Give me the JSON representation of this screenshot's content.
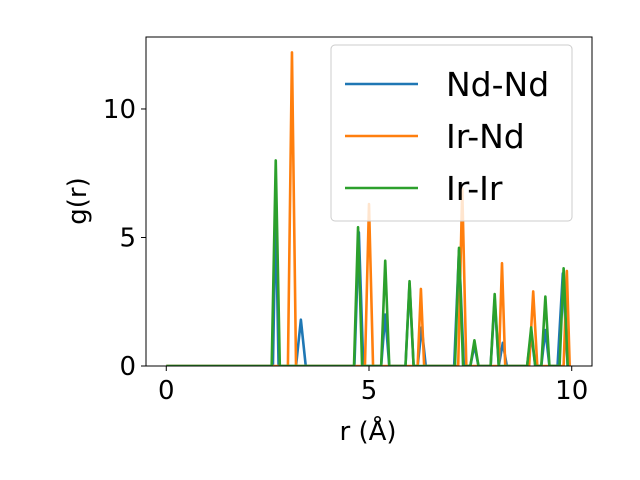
{
  "chart_data": {
    "type": "line",
    "xlabel": "r (Å)",
    "ylabel": "g(r)",
    "xlim": [
      -0.5,
      10.5
    ],
    "ylim": [
      0,
      12.8
    ],
    "x_ticks": [
      0,
      5,
      10
    ],
    "y_ticks": [
      0,
      5,
      10
    ],
    "grid": false,
    "legend_position": "upper right",
    "series": [
      {
        "name": "Nd-Nd",
        "color": "#1f77b4",
        "points": [
          [
            0,
            0
          ],
          [
            2.63,
            0
          ],
          [
            2.7,
            6.0
          ],
          [
            2.77,
            0
          ],
          [
            3.2,
            0
          ],
          [
            3.32,
            1.8
          ],
          [
            3.44,
            0
          ],
          [
            4.64,
            0
          ],
          [
            4.75,
            5.2
          ],
          [
            4.86,
            0
          ],
          [
            5.3,
            0
          ],
          [
            5.4,
            2.0
          ],
          [
            5.5,
            0
          ],
          [
            5.9,
            0
          ],
          [
            6.0,
            3.2
          ],
          [
            6.1,
            0
          ],
          [
            6.2,
            0
          ],
          [
            6.3,
            1.5
          ],
          [
            6.4,
            0
          ],
          [
            7.1,
            0
          ],
          [
            7.22,
            4.5
          ],
          [
            7.34,
            0
          ],
          [
            7.5,
            0
          ],
          [
            7.6,
            0.8
          ],
          [
            7.7,
            0
          ],
          [
            8.0,
            0
          ],
          [
            8.1,
            2.6
          ],
          [
            8.2,
            0
          ],
          [
            8.2,
            0
          ],
          [
            8.3,
            0.9
          ],
          [
            8.4,
            0
          ],
          [
            8.9,
            0
          ],
          [
            9.0,
            1.3
          ],
          [
            9.1,
            0
          ],
          [
            9.25,
            0
          ],
          [
            9.35,
            1.4
          ],
          [
            9.45,
            0
          ],
          [
            9.65,
            0
          ],
          [
            9.78,
            3.6
          ],
          [
            9.9,
            0
          ]
        ]
      },
      {
        "name": "Ir-Nd",
        "color": "#ff7f0e",
        "points": [
          [
            0,
            0
          ],
          [
            3.0,
            0
          ],
          [
            3.1,
            12.2
          ],
          [
            3.2,
            0
          ],
          [
            4.9,
            0
          ],
          [
            5.0,
            6.3
          ],
          [
            5.1,
            0
          ],
          [
            6.2,
            0
          ],
          [
            6.28,
            3.0
          ],
          [
            6.36,
            0
          ],
          [
            7.2,
            0
          ],
          [
            7.3,
            6.9
          ],
          [
            7.4,
            0
          ],
          [
            8.2,
            0
          ],
          [
            8.28,
            4.0
          ],
          [
            8.36,
            0
          ],
          [
            8.95,
            0
          ],
          [
            9.05,
            2.9
          ],
          [
            9.15,
            0
          ],
          [
            9.8,
            0
          ],
          [
            9.88,
            3.7
          ],
          [
            9.95,
            0
          ]
        ]
      },
      {
        "name": "Ir-Ir",
        "color": "#2ca02c",
        "points": [
          [
            0,
            0
          ],
          [
            2.6,
            0
          ],
          [
            2.7,
            8.0
          ],
          [
            2.8,
            0
          ],
          [
            4.63,
            0
          ],
          [
            4.73,
            5.4
          ],
          [
            4.83,
            0
          ],
          [
            5.3,
            0
          ],
          [
            5.4,
            4.1
          ],
          [
            5.5,
            0
          ],
          [
            5.9,
            0
          ],
          [
            6.0,
            3.3
          ],
          [
            6.1,
            0
          ],
          [
            7.12,
            0
          ],
          [
            7.22,
            4.6
          ],
          [
            7.32,
            0
          ],
          [
            7.5,
            0
          ],
          [
            7.6,
            1.0
          ],
          [
            7.7,
            0
          ],
          [
            8.0,
            0
          ],
          [
            8.1,
            2.8
          ],
          [
            8.2,
            0
          ],
          [
            8.9,
            0
          ],
          [
            9.0,
            1.5
          ],
          [
            9.1,
            0
          ],
          [
            9.25,
            0
          ],
          [
            9.35,
            2.7
          ],
          [
            9.45,
            0
          ],
          [
            9.7,
            0
          ],
          [
            9.8,
            3.8
          ],
          [
            9.9,
            0
          ]
        ]
      }
    ]
  }
}
